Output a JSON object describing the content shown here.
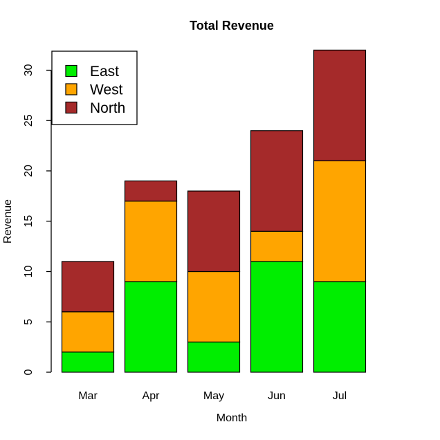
{
  "chart_data": {
    "type": "bar",
    "stacked": true,
    "title": "Total Revenue",
    "xlabel": "Month",
    "ylabel": "Revenue",
    "categories": [
      "Mar",
      "Apr",
      "May",
      "Jun",
      "Jul"
    ],
    "series": [
      {
        "name": "East",
        "color": "#00EE00",
        "values": [
          2,
          9,
          3,
          11,
          9
        ]
      },
      {
        "name": "West",
        "color": "#FFA500",
        "values": [
          4,
          8,
          7,
          3,
          12
        ]
      },
      {
        "name": "North",
        "color": "#A52A2A",
        "values": [
          5,
          2,
          8,
          10,
          11
        ]
      }
    ],
    "totals": [
      11,
      19,
      18,
      24,
      32
    ],
    "yticks": [
      0,
      5,
      10,
      15,
      20,
      25,
      30
    ],
    "ylim": [
      0,
      32
    ],
    "grid": false,
    "bar_border_color": "#000000",
    "axis_color": "#000000",
    "background_color": "#FFFFFF",
    "legend": {
      "position": "top-left",
      "border_color": "#000000",
      "background_color": "#FFFFFF",
      "entries": [
        "East",
        "West",
        "North"
      ]
    }
  }
}
